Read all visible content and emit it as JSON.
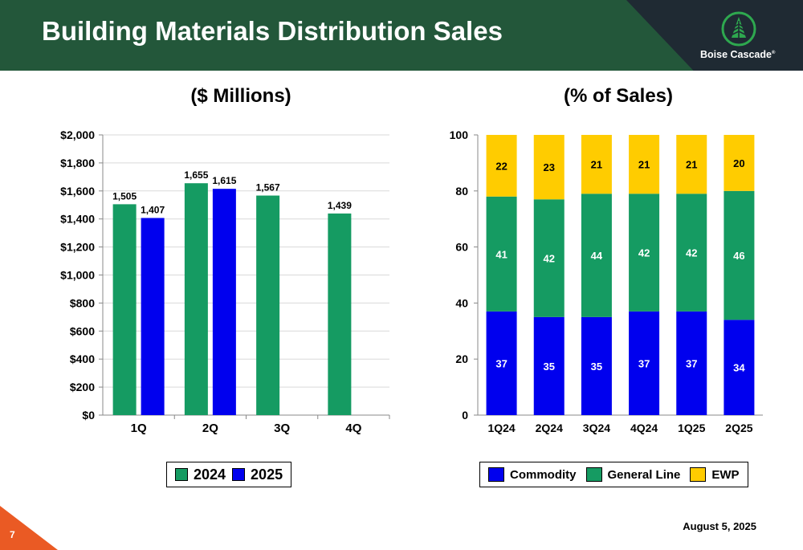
{
  "header": {
    "title": "Building Materials Distribution Sales",
    "brand": "Boise Cascade",
    "brand_mark": "®"
  },
  "colors": {
    "green": "#159b62",
    "blue": "#0000ee",
    "yellow": "#ffcc00",
    "header_bg": "#23573a",
    "logo_bg": "#1f2a33",
    "logo_green": "#2ea84f",
    "footer_accent": "#ea5a24"
  },
  "footer": {
    "page_number": "7",
    "date": "August 5, 2025"
  },
  "chart_data": [
    {
      "type": "bar",
      "title": "($ Millions)",
      "categories": [
        "1Q",
        "2Q",
        "3Q",
        "4Q"
      ],
      "series": [
        {
          "name": "2024",
          "values": [
            1505,
            1655,
            1567,
            1439
          ],
          "labels": [
            "1,505",
            "1,655",
            "1,567",
            "1,439"
          ]
        },
        {
          "name": "2025",
          "values": [
            1407,
            1615,
            null,
            null
          ],
          "labels": [
            "1,407",
            "1,615",
            "",
            ""
          ]
        }
      ],
      "ylim": [
        0,
        2000
      ],
      "yticks": [
        0,
        200,
        400,
        600,
        800,
        1000,
        1200,
        1400,
        1600,
        1800,
        2000
      ],
      "ytick_labels": [
        "$0",
        "$200",
        "$400",
        "$600",
        "$800",
        "$1,000",
        "$1,200",
        "$1,400",
        "$1,600",
        "$1,800",
        "$2,000"
      ],
      "grid": true,
      "legend": "bottom"
    },
    {
      "type": "bar",
      "stacked": true,
      "title": "(% of Sales)",
      "categories": [
        "1Q24",
        "2Q24",
        "3Q24",
        "4Q24",
        "1Q25",
        "2Q25"
      ],
      "series": [
        {
          "name": "Commodity",
          "values": [
            37,
            35,
            35,
            37,
            37,
            34
          ]
        },
        {
          "name": "General Line",
          "values": [
            41,
            42,
            44,
            42,
            42,
            46
          ]
        },
        {
          "name": "EWP",
          "values": [
            22,
            23,
            21,
            21,
            21,
            20
          ]
        }
      ],
      "ylim": [
        0,
        100
      ],
      "yticks": [
        0,
        20,
        40,
        60,
        80,
        100
      ],
      "ytick_labels": [
        "0",
        "20",
        "40",
        "60",
        "80",
        "100"
      ],
      "grid": false,
      "legend": "bottom"
    }
  ]
}
